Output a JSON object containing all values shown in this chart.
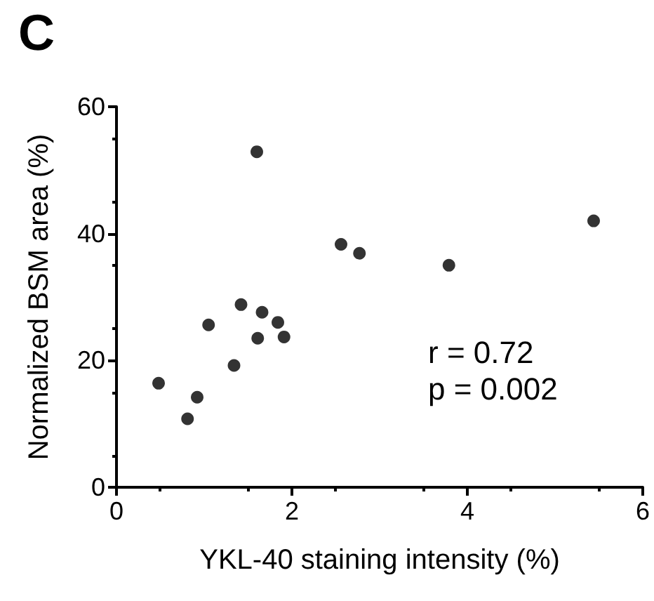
{
  "chart_data": {
    "type": "scatter",
    "title": "C",
    "xlabel": "YKL-40 staining intensity (%)",
    "ylabel": "Normalized BSM area (%)",
    "x": [
      0.48,
      0.92,
      0.81,
      1.05,
      1.34,
      1.42,
      1.6,
      1.66,
      1.61,
      1.84,
      1.91,
      2.56,
      2.77,
      3.79,
      5.44
    ],
    "values": [
      16.4,
      14.2,
      10.8,
      25.6,
      19.2,
      28.8,
      52.9,
      27.6,
      23.5,
      26.0,
      23.7,
      38.3,
      36.9,
      35.0,
      42.0
    ],
    "color": "#000000",
    "marker": "circle",
    "xlim": [
      0,
      6
    ],
    "xticks": [
      0,
      2,
      4,
      6
    ],
    "ylim": [
      0,
      60
    ],
    "yticks": [
      0,
      20,
      40,
      60
    ],
    "grid": false,
    "annotations": [
      "r = 0.72",
      "p = 0.002"
    ]
  }
}
